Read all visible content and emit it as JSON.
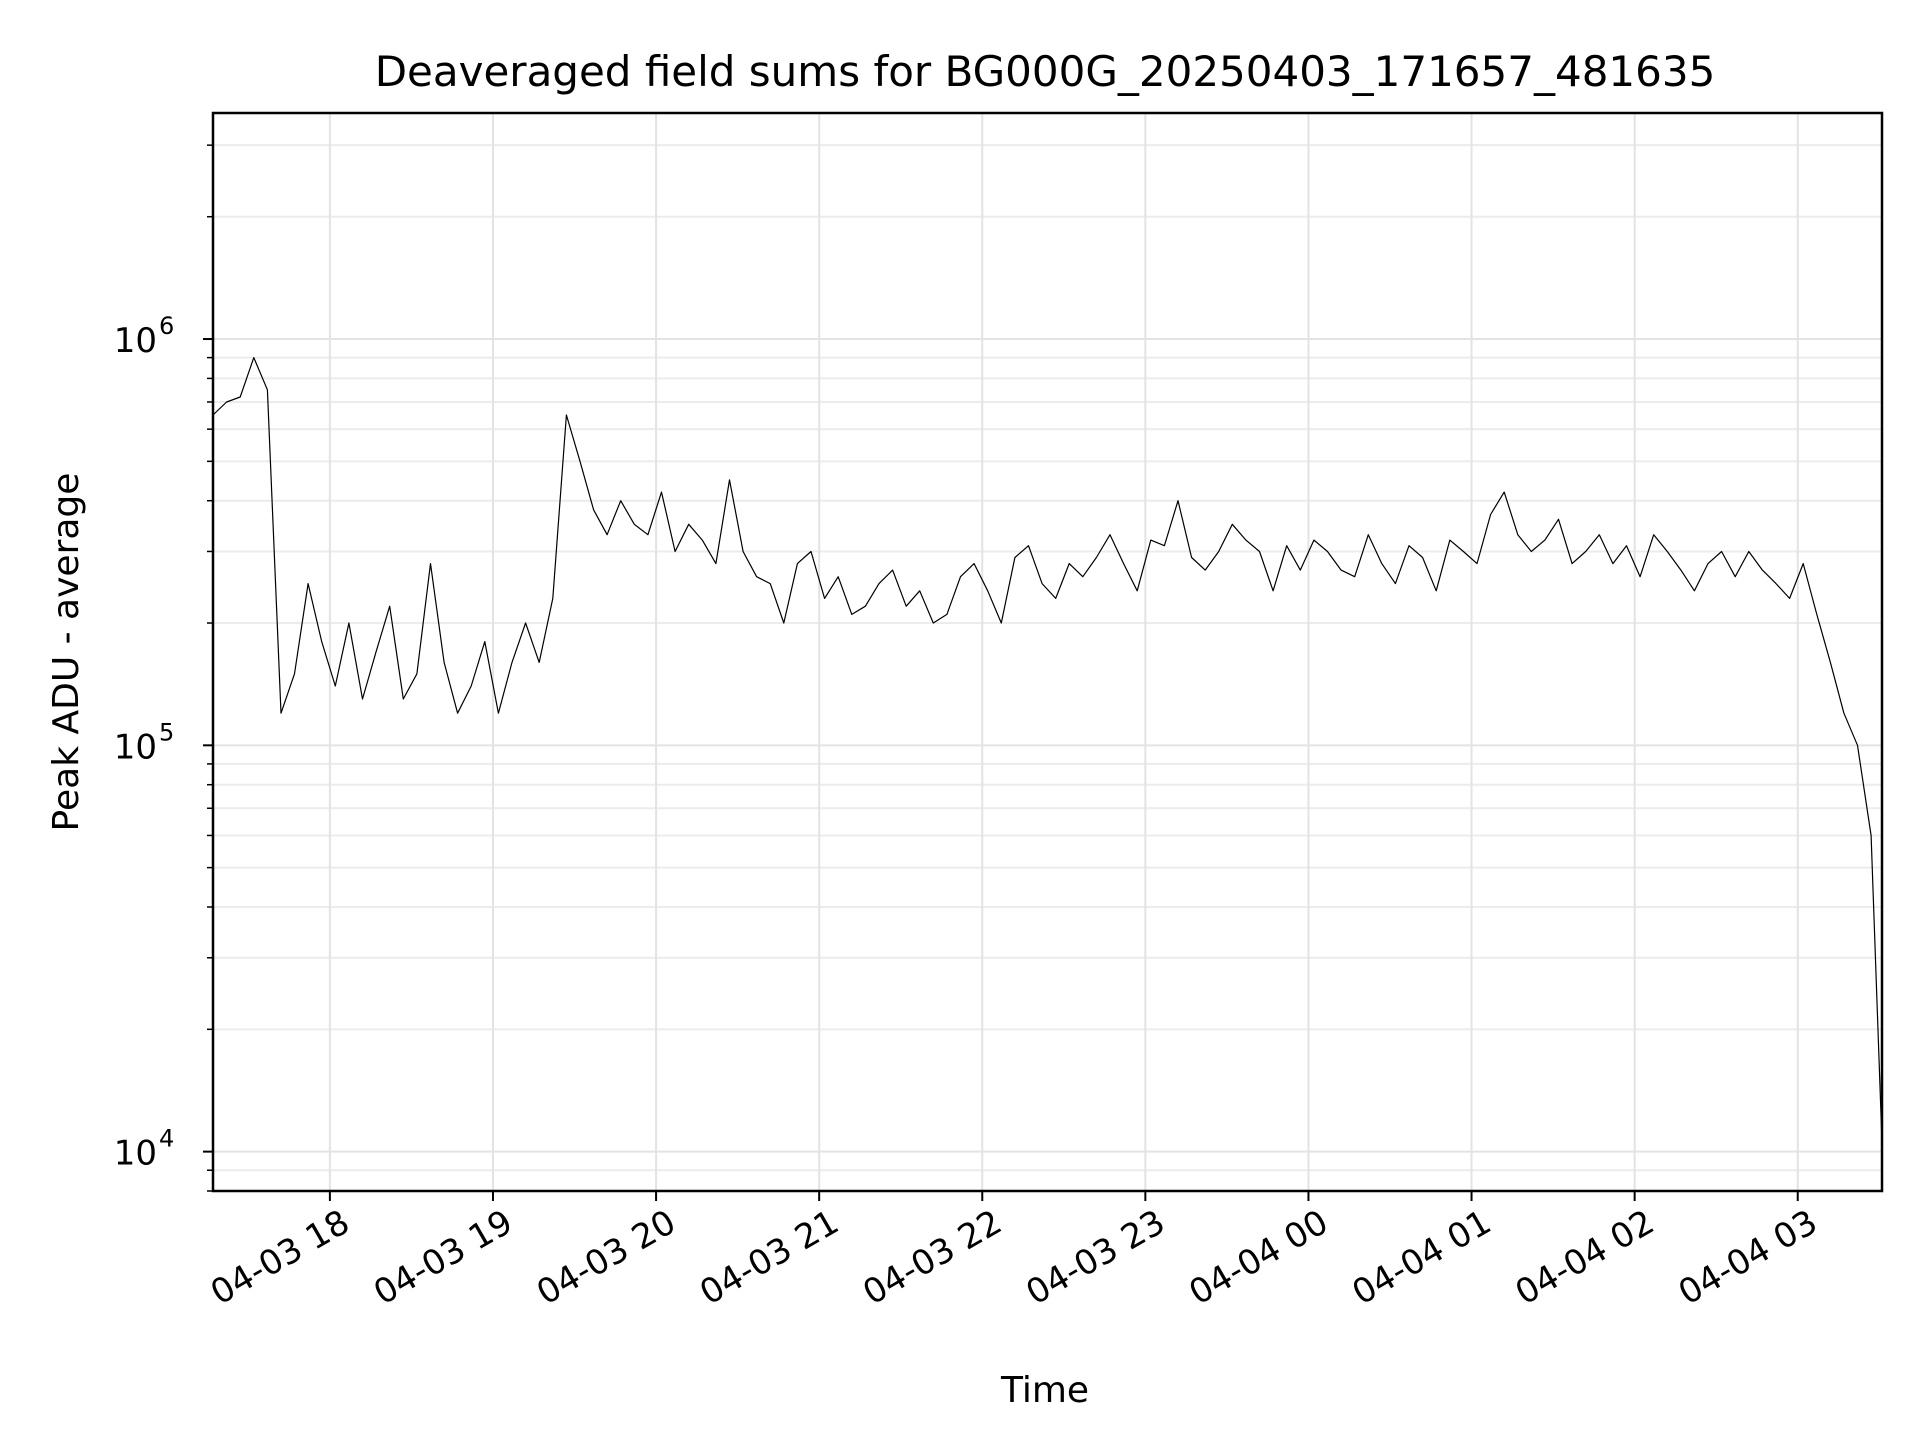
{
  "chart_data": {
    "type": "line",
    "title": "Deaveraged field sums for BG000G_20250403_171657_481635",
    "xlabel": "Time",
    "ylabel": "Peak ADU - average",
    "yscale": "log",
    "grid": true,
    "line_color": "#000000",
    "xlim": [
      "2025-04-03 17:17",
      "2025-04-04 03:31"
    ],
    "ylim": [
      8000,
      3600000
    ],
    "xticks": [
      {
        "value": "2025-04-03 18:00",
        "label": "04-03 18"
      },
      {
        "value": "2025-04-03 19:00",
        "label": "04-03 19"
      },
      {
        "value": "2025-04-03 20:00",
        "label": "04-03 20"
      },
      {
        "value": "2025-04-03 21:00",
        "label": "04-03 21"
      },
      {
        "value": "2025-04-03 22:00",
        "label": "04-03 22"
      },
      {
        "value": "2025-04-03 23:00",
        "label": "04-03 23"
      },
      {
        "value": "2025-04-04 00:00",
        "label": "04-04 00"
      },
      {
        "value": "2025-04-04 01:00",
        "label": "04-04 01"
      },
      {
        "value": "2025-04-04 02:00",
        "label": "04-04 02"
      },
      {
        "value": "2025-04-04 03:00",
        "label": "04-04 03"
      }
    ],
    "yticks": [
      {
        "value": 10000,
        "base": "10",
        "exp": "4"
      },
      {
        "value": 100000,
        "base": "10",
        "exp": "5"
      },
      {
        "value": 1000000,
        "base": "10",
        "exp": "6"
      }
    ],
    "series": [
      {
        "x": [
          "2025-04-03 17:17",
          "2025-04-03 17:22",
          "2025-04-03 17:27",
          "2025-04-03 17:32",
          "2025-04-03 17:37",
          "2025-04-03 17:42",
          "2025-04-03 17:47",
          "2025-04-03 17:52",
          "2025-04-03 17:57",
          "2025-04-03 18:02",
          "2025-04-03 18:07",
          "2025-04-03 18:12",
          "2025-04-03 18:17",
          "2025-04-03 18:22",
          "2025-04-03 18:27",
          "2025-04-03 18:32",
          "2025-04-03 18:37",
          "2025-04-03 18:42",
          "2025-04-03 18:47",
          "2025-04-03 18:52",
          "2025-04-03 18:57",
          "2025-04-03 19:02",
          "2025-04-03 19:07",
          "2025-04-03 19:12",
          "2025-04-03 19:17",
          "2025-04-03 19:22",
          "2025-04-03 19:27",
          "2025-04-03 19:32",
          "2025-04-03 19:37",
          "2025-04-03 19:42",
          "2025-04-03 19:47",
          "2025-04-03 19:52",
          "2025-04-03 19:57",
          "2025-04-03 20:02",
          "2025-04-03 20:07",
          "2025-04-03 20:12",
          "2025-04-03 20:17",
          "2025-04-03 20:22",
          "2025-04-03 20:27",
          "2025-04-03 20:32",
          "2025-04-03 20:37",
          "2025-04-03 20:42",
          "2025-04-03 20:47",
          "2025-04-03 20:52",
          "2025-04-03 20:57",
          "2025-04-03 21:02",
          "2025-04-03 21:07",
          "2025-04-03 21:12",
          "2025-04-03 21:17",
          "2025-04-03 21:22",
          "2025-04-03 21:27",
          "2025-04-03 21:32",
          "2025-04-03 21:37",
          "2025-04-03 21:42",
          "2025-04-03 21:47",
          "2025-04-03 21:52",
          "2025-04-03 21:57",
          "2025-04-03 22:02",
          "2025-04-03 22:07",
          "2025-04-03 22:12",
          "2025-04-03 22:17",
          "2025-04-03 22:22",
          "2025-04-03 22:27",
          "2025-04-03 22:32",
          "2025-04-03 22:37",
          "2025-04-03 22:42",
          "2025-04-03 22:47",
          "2025-04-03 22:52",
          "2025-04-03 22:57",
          "2025-04-03 23:02",
          "2025-04-03 23:07",
          "2025-04-03 23:12",
          "2025-04-03 23:17",
          "2025-04-03 23:22",
          "2025-04-03 23:27",
          "2025-04-03 23:32",
          "2025-04-03 23:37",
          "2025-04-03 23:42",
          "2025-04-03 23:47",
          "2025-04-03 23:52",
          "2025-04-03 23:57",
          "2025-04-04 00:02",
          "2025-04-04 00:07",
          "2025-04-04 00:12",
          "2025-04-04 00:17",
          "2025-04-04 00:22",
          "2025-04-04 00:27",
          "2025-04-04 00:32",
          "2025-04-04 00:37",
          "2025-04-04 00:42",
          "2025-04-04 00:47",
          "2025-04-04 00:52",
          "2025-04-04 00:57",
          "2025-04-04 01:02",
          "2025-04-04 01:07",
          "2025-04-04 01:12",
          "2025-04-04 01:17",
          "2025-04-04 01:22",
          "2025-04-04 01:27",
          "2025-04-04 01:32",
          "2025-04-04 01:37",
          "2025-04-04 01:42",
          "2025-04-04 01:47",
          "2025-04-04 01:52",
          "2025-04-04 01:57",
          "2025-04-04 02:02",
          "2025-04-04 02:07",
          "2025-04-04 02:12",
          "2025-04-04 02:17",
          "2025-04-04 02:22",
          "2025-04-04 02:27",
          "2025-04-04 02:32",
          "2025-04-04 02:37",
          "2025-04-04 02:42",
          "2025-04-04 02:47",
          "2025-04-04 02:52",
          "2025-04-04 02:57",
          "2025-04-04 03:02",
          "2025-04-04 03:07",
          "2025-04-04 03:12",
          "2025-04-04 03:17",
          "2025-04-04 03:22",
          "2025-04-04 03:27",
          "2025-04-04 03:31"
        ],
        "y": [
          650000,
          700000,
          720000,
          900000,
          750000,
          120000,
          150000,
          250000,
          180000,
          140000,
          200000,
          130000,
          170000,
          220000,
          130000,
          150000,
          280000,
          160000,
          120000,
          140000,
          180000,
          120000,
          160000,
          200000,
          160000,
          230000,
          650000,
          500000,
          380000,
          330000,
          400000,
          350000,
          330000,
          420000,
          300000,
          350000,
          320000,
          280000,
          450000,
          300000,
          260000,
          250000,
          200000,
          280000,
          300000,
          230000,
          260000,
          210000,
          220000,
          250000,
          270000,
          220000,
          240000,
          200000,
          210000,
          260000,
          280000,
          240000,
          200000,
          290000,
          310000,
          250000,
          230000,
          280000,
          260000,
          290000,
          330000,
          280000,
          240000,
          320000,
          310000,
          400000,
          290000,
          270000,
          300000,
          350000,
          320000,
          300000,
          240000,
          310000,
          270000,
          320000,
          300000,
          270000,
          260000,
          330000,
          280000,
          250000,
          310000,
          290000,
          240000,
          320000,
          300000,
          280000,
          370000,
          420000,
          330000,
          300000,
          320000,
          360000,
          280000,
          300000,
          330000,
          280000,
          310000,
          260000,
          330000,
          300000,
          270000,
          240000,
          280000,
          300000,
          260000,
          300000,
          270000,
          250000,
          230000,
          280000,
          210000,
          160000,
          120000,
          100000,
          60000,
          10500
        ]
      }
    ]
  }
}
